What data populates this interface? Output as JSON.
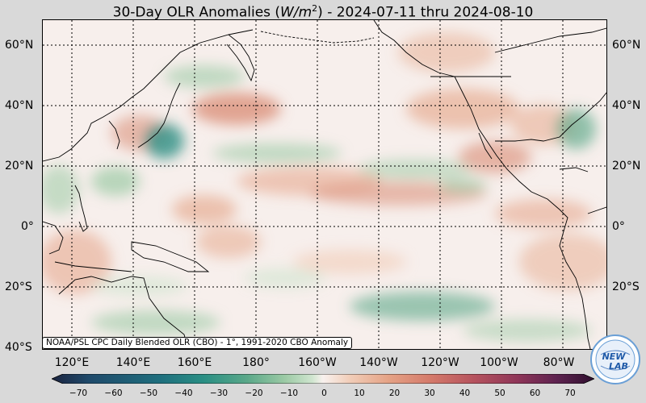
{
  "title": {
    "prefix": "30-Day OLR Anomalies (",
    "unit_var": "W/m",
    "unit_exp": "2",
    "suffix": ") - 2024-07-11 thru 2024-08-10"
  },
  "lat_labels": [
    "60°N",
    "40°N",
    "20°N",
    "0°",
    "20°S",
    "40°S"
  ],
  "lon_labels": [
    "120°E",
    "140°E",
    "160°E",
    "180°",
    "160°W",
    "140°W",
    "120°W",
    "100°W",
    "80°W"
  ],
  "credit": "NOAA/PSL CPC Daily Blended OLR (CBO) - 1°, 1991-2020 CBO Anomaly",
  "colorbar": {
    "ticks": [
      "−70",
      "−60",
      "−50",
      "−40",
      "−30",
      "−20",
      "−10",
      "0",
      "10",
      "20",
      "30",
      "40",
      "50",
      "60",
      "70"
    ],
    "colors": [
      "#1b2440",
      "#1f4a6b",
      "#1f6f7e",
      "#2a8f84",
      "#5aa889",
      "#9ccaa5",
      "#cfe5cf",
      "#f8f1ee",
      "#f1cdb8",
      "#e5a386",
      "#d4796a",
      "#b5525e",
      "#8e3558",
      "#5e2350",
      "#2f0f2e"
    ]
  },
  "logo": {
    "line1": "NEW",
    "line2": "LAB"
  },
  "colors": {
    "negative_anomaly": "#3f9a7f",
    "positive_anomaly": "#d98b73",
    "neutral": "#f7efec"
  }
}
